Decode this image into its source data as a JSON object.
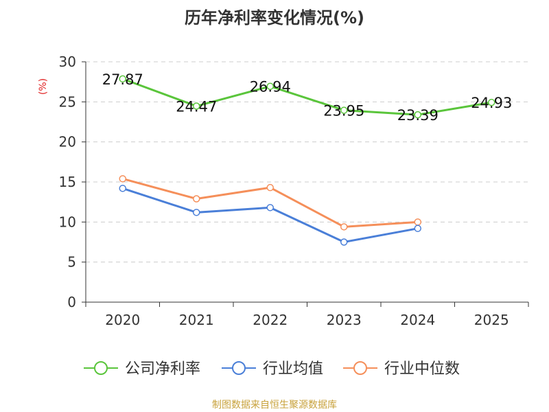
{
  "chart_data": {
    "type": "line",
    "title": "历年净利率变化情况(%)",
    "ylabel": "(%)",
    "xlabel": "",
    "categories": [
      "2020",
      "2021",
      "2022",
      "2023",
      "2024",
      "2025"
    ],
    "ylim": [
      0,
      30
    ],
    "yticks": [
      "0",
      "5",
      "10",
      "15",
      "20",
      "25",
      "30"
    ],
    "grid": true,
    "legend_position": "bottom",
    "series": [
      {
        "name": "公司净利率",
        "color": "#5ac53b",
        "values": [
          27.87,
          24.47,
          26.94,
          23.95,
          23.39,
          24.93
        ],
        "labels": [
          "27.87",
          "24.47",
          "26.94",
          "23.95",
          "23.39",
          "24.93"
        ]
      },
      {
        "name": "行业均值",
        "color": "#4a7fd8",
        "values": [
          14.2,
          11.2,
          11.8,
          7.5,
          9.2,
          null
        ],
        "labels": []
      },
      {
        "name": "行业中位数",
        "color": "#f58f5a",
        "values": [
          15.4,
          12.9,
          14.3,
          9.4,
          10.0,
          null
        ],
        "labels": []
      }
    ],
    "source": "制图数据来自恒生聚源数据库"
  }
}
